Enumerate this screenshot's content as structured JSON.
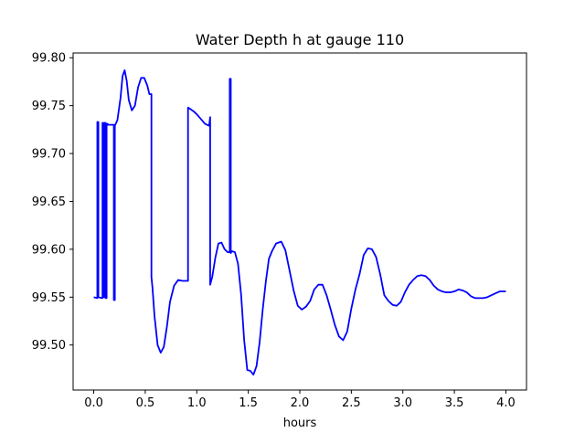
{
  "chart_data": {
    "type": "line",
    "title": "Water Depth h at gauge 110",
    "xlabel": "hours",
    "ylabel": "",
    "xlim": [
      -0.2,
      4.2
    ],
    "ylim": [
      99.453,
      99.805
    ],
    "xticks": [
      0.0,
      0.5,
      1.0,
      1.5,
      2.0,
      2.5,
      3.0,
      3.5,
      4.0
    ],
    "xtick_labels": [
      "0.0",
      "0.5",
      "1.0",
      "1.5",
      "2.0",
      "2.5",
      "3.0",
      "3.5",
      "4.0"
    ],
    "yticks": [
      99.5,
      99.55,
      99.6,
      99.65,
      99.7,
      99.75,
      99.8
    ],
    "ytick_labels": [
      "99.50",
      "99.55",
      "99.60",
      "99.65",
      "99.70",
      "99.75",
      "99.80"
    ],
    "grid": false,
    "series": [
      {
        "color": "#0000ff",
        "x": [
          0.0,
          0.035,
          0.035,
          0.045,
          0.045,
          0.085,
          0.085,
          0.095,
          0.095,
          0.105,
          0.105,
          0.115,
          0.115,
          0.125,
          0.125,
          0.135,
          0.135,
          0.195,
          0.195,
          0.205,
          0.205,
          0.23,
          0.26,
          0.28,
          0.3,
          0.32,
          0.34,
          0.37,
          0.4,
          0.43,
          0.46,
          0.49,
          0.52,
          0.54,
          0.56,
          0.56,
          0.57,
          0.59,
          0.62,
          0.65,
          0.68,
          0.71,
          0.74,
          0.78,
          0.82,
          0.86,
          0.9,
          0.915,
          0.915,
          0.93,
          0.97,
          1.0,
          1.04,
          1.08,
          1.12,
          1.13,
          1.13,
          1.13,
          1.15,
          1.18,
          1.21,
          1.24,
          1.27,
          1.3,
          1.32,
          1.32,
          1.33,
          1.33,
          1.34,
          1.37,
          1.4,
          1.43,
          1.46,
          1.49,
          1.52,
          1.55,
          1.58,
          1.61,
          1.64,
          1.67,
          1.7,
          1.73,
          1.77,
          1.82,
          1.86,
          1.9,
          1.94,
          1.98,
          2.02,
          2.06,
          2.1,
          2.14,
          2.18,
          2.22,
          2.26,
          2.3,
          2.34,
          2.38,
          2.42,
          2.46,
          2.5,
          2.54,
          2.58,
          2.62,
          2.66,
          2.7,
          2.74,
          2.78,
          2.82,
          2.86,
          2.9,
          2.94,
          2.98,
          3.02,
          3.06,
          3.1,
          3.14,
          3.18,
          3.22,
          3.26,
          3.3,
          3.34,
          3.38,
          3.42,
          3.46,
          3.5,
          3.54,
          3.58,
          3.62,
          3.66,
          3.7,
          3.74,
          3.78,
          3.82,
          3.86,
          3.9,
          3.94,
          3.98,
          4.0
        ],
        "y": [
          99.55,
          99.549,
          99.733,
          99.733,
          99.55,
          99.549,
          99.732,
          99.732,
          99.55,
          99.55,
          99.732,
          99.732,
          99.549,
          99.549,
          99.731,
          99.731,
          99.73,
          99.73,
          99.547,
          99.547,
          99.729,
          99.735,
          99.758,
          99.781,
          99.787,
          99.776,
          99.756,
          99.745,
          99.75,
          99.769,
          99.779,
          99.779,
          99.771,
          99.762,
          99.762,
          99.571,
          99.56,
          99.53,
          99.5,
          99.492,
          99.498,
          99.519,
          99.545,
          99.562,
          99.568,
          99.567,
          99.567,
          99.567,
          99.748,
          99.747,
          99.744,
          99.741,
          99.736,
          99.731,
          99.729,
          99.738,
          99.563,
          99.563,
          99.571,
          99.591,
          99.606,
          99.607,
          99.6,
          99.597,
          99.597,
          99.778,
          99.778,
          99.596,
          99.598,
          99.597,
          99.585,
          99.553,
          99.505,
          99.474,
          99.473,
          99.469,
          99.478,
          99.503,
          99.537,
          99.566,
          99.59,
          99.598,
          99.606,
          99.608,
          99.599,
          99.578,
          99.557,
          99.541,
          99.537,
          99.54,
          99.546,
          99.558,
          99.563,
          99.563,
          99.552,
          99.537,
          99.521,
          99.509,
          99.505,
          99.514,
          99.538,
          99.558,
          99.574,
          99.594,
          99.601,
          99.6,
          99.592,
          99.574,
          99.552,
          99.546,
          99.542,
          99.541,
          99.545,
          99.555,
          99.563,
          99.568,
          99.572,
          99.573,
          99.572,
          99.568,
          99.562,
          99.558,
          99.556,
          99.555,
          99.555,
          99.556,
          99.558,
          99.557,
          99.555,
          99.551,
          99.549,
          99.549,
          99.549,
          99.55,
          99.552,
          99.554,
          99.556,
          99.556,
          99.556
        ]
      }
    ]
  }
}
